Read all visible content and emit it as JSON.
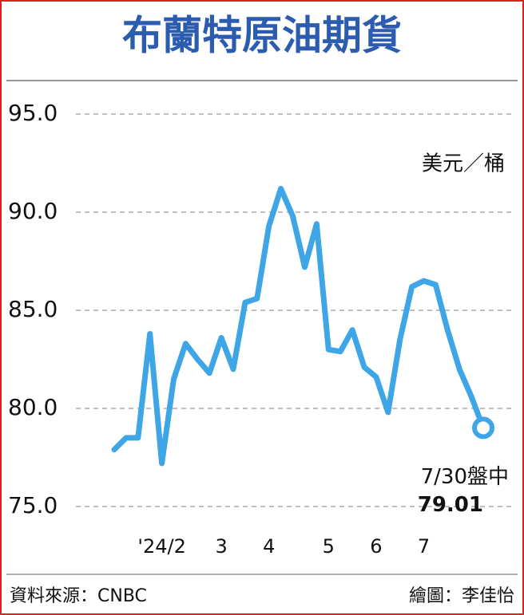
{
  "chart_data": {
    "type": "line",
    "title": "布蘭特原油期貨",
    "unit": "美元／桶",
    "categories": [
      null,
      null,
      null,
      null,
      "'24/2",
      null,
      null,
      null,
      null,
      "3",
      null,
      null,
      null,
      "4",
      null,
      null,
      null,
      null,
      "5",
      null,
      null,
      null,
      "6",
      null,
      null,
      null,
      "7",
      null,
      null,
      null,
      null,
      null
    ],
    "values": [
      77.9,
      78.5,
      78.5,
      83.8,
      77.2,
      81.5,
      83.3,
      82.5,
      81.8,
      83.6,
      82.0,
      85.4,
      85.6,
      89.3,
      91.2,
      89.8,
      87.2,
      89.4,
      83.0,
      82.9,
      84.0,
      82.1,
      81.6,
      79.8,
      83.5,
      86.2,
      86.5,
      86.3,
      84.0,
      82.0,
      80.6,
      79.01
    ],
    "value_labels": [
      null,
      null,
      null,
      null,
      null,
      null,
      null,
      null,
      null,
      null,
      null,
      null,
      null,
      null,
      null,
      null,
      null,
      null,
      null,
      null,
      null,
      null,
      null,
      null,
      null,
      null,
      null,
      null,
      null,
      null,
      null,
      "79.01"
    ],
    "annotation": "7/30盤中",
    "color": "#3ea6e6",
    "ylim": [
      75,
      95
    ],
    "yticks": [
      {
        "value": 75,
        "label": "75.0"
      },
      {
        "value": 80,
        "label": "80.0"
      },
      {
        "value": 85,
        "label": "85.0"
      },
      {
        "value": 90,
        "label": "90.0"
      },
      {
        "value": 95,
        "label": "95.0"
      }
    ],
    "grid": true,
    "source": "資料來源：CNBC",
    "credit": "繪圖：李佳怡"
  }
}
